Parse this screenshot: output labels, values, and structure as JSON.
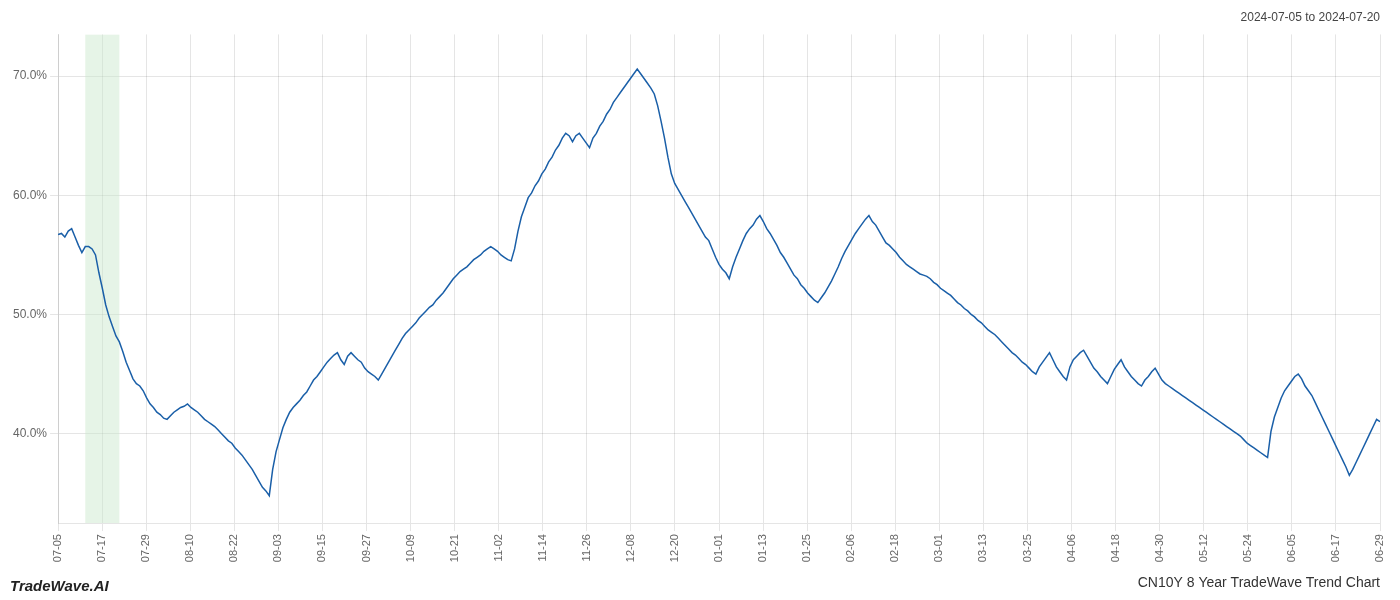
{
  "chart_data": {
    "type": "line",
    "title": "2024-07-05 to 2024-07-20",
    "subtitle": "CN10Y 8 Year TradeWave Trend Chart",
    "annotations": [
      "TradeWave.AI"
    ],
    "color": "#1a5fa8",
    "grid": true,
    "highlight": {
      "start": 8,
      "end": 18,
      "color": "#c8e6c9"
    },
    "xlim": [
      0,
      388
    ],
    "xticks": [
      {
        "value": 0,
        "label": "07-05"
      },
      {
        "value": 12.933333,
        "label": "07-17"
      },
      {
        "value": 25.866667,
        "label": "07-29"
      },
      {
        "value": 38.8,
        "label": "08-10"
      },
      {
        "value": 51.733333,
        "label": "08-22"
      },
      {
        "value": 64.666667,
        "label": "09-03"
      },
      {
        "value": 77.6,
        "label": "09-15"
      },
      {
        "value": 90.533333,
        "label": "09-27"
      },
      {
        "value": 103.466667,
        "label": "10-09"
      },
      {
        "value": 116.4,
        "label": "10-21"
      },
      {
        "value": 129.333333,
        "label": "11-02"
      },
      {
        "value": 142.266667,
        "label": "11-14"
      },
      {
        "value": 155.2,
        "label": "11-26"
      },
      {
        "value": 168.133333,
        "label": "12-08"
      },
      {
        "value": 181.066667,
        "label": "12-20"
      },
      {
        "value": 194,
        "label": "01-01"
      },
      {
        "value": 206.933333,
        "label": "01-13"
      },
      {
        "value": 219.866667,
        "label": "01-25"
      },
      {
        "value": 232.8,
        "label": "02-06"
      },
      {
        "value": 245.733333,
        "label": "02-18"
      },
      {
        "value": 258.666667,
        "label": "03-01"
      },
      {
        "value": 271.6,
        "label": "03-13"
      },
      {
        "value": 284.533333,
        "label": "03-25"
      },
      {
        "value": 297.466667,
        "label": "04-06"
      },
      {
        "value": 310.4,
        "label": "04-18"
      },
      {
        "value": 323.333333,
        "label": "04-30"
      },
      {
        "value": 336.266667,
        "label": "05-12"
      },
      {
        "value": 349.2,
        "label": "05-24"
      },
      {
        "value": 362.133333,
        "label": "06-05"
      },
      {
        "value": 375.066667,
        "label": "06-17"
      },
      {
        "value": 388,
        "label": "06-29"
      }
    ],
    "ylim": [
      0.325,
      0.735
    ],
    "yticks": [
      {
        "value": 0.4,
        "label": "40.0%"
      },
      {
        "value": 0.5,
        "label": "50.0%"
      },
      {
        "value": 0.6,
        "label": "60.0%"
      },
      {
        "value": 0.7,
        "label": "70.0%"
      }
    ],
    "values": [
      0.567,
      0.568,
      0.565,
      0.57,
      0.572,
      0.565,
      0.558,
      0.552,
      0.557,
      0.557,
      0.555,
      0.55,
      0.535,
      0.522,
      0.508,
      0.498,
      0.49,
      0.482,
      0.477,
      0.469,
      0.46,
      0.453,
      0.446,
      0.442,
      0.44,
      0.436,
      0.43,
      0.425,
      0.422,
      0.418,
      0.416,
      0.413,
      0.412,
      0.415,
      0.418,
      0.42,
      0.422,
      0.423,
      0.425,
      0.422,
      0.42,
      0.418,
      0.415,
      0.412,
      0.41,
      0.408,
      0.406,
      0.403,
      0.4,
      0.397,
      0.394,
      0.392,
      0.388,
      0.385,
      0.382,
      0.378,
      0.374,
      0.37,
      0.365,
      0.36,
      0.355,
      0.352,
      0.348,
      0.37,
      0.385,
      0.395,
      0.405,
      0.412,
      0.418,
      0.422,
      0.425,
      0.428,
      0.432,
      0.435,
      0.44,
      0.445,
      0.448,
      0.452,
      0.456,
      0.46,
      0.463,
      0.466,
      0.468,
      0.462,
      0.458,
      0.465,
      0.468,
      0.465,
      0.462,
      0.46,
      0.455,
      0.452,
      0.45,
      0.448,
      0.445,
      0.45,
      0.455,
      0.46,
      0.465,
      0.47,
      0.475,
      0.48,
      0.484,
      0.487,
      0.49,
      0.493,
      0.497,
      0.5,
      0.503,
      0.506,
      0.508,
      0.512,
      0.515,
      0.518,
      0.522,
      0.526,
      0.53,
      0.533,
      0.536,
      0.538,
      0.54,
      0.543,
      0.546,
      0.548,
      0.55,
      0.553,
      0.555,
      0.557,
      0.555,
      0.553,
      0.55,
      0.548,
      0.546,
      0.545,
      0.555,
      0.57,
      0.582,
      0.59,
      0.598,
      0.602,
      0.608,
      0.612,
      0.618,
      0.622,
      0.628,
      0.632,
      0.638,
      0.642,
      0.648,
      0.652,
      0.65,
      0.645,
      0.65,
      0.652,
      0.648,
      0.644,
      0.64,
      0.648,
      0.652,
      0.658,
      0.662,
      0.668,
      0.672,
      0.678,
      0.682,
      0.686,
      0.69,
      0.694,
      0.698,
      0.702,
      0.706,
      0.702,
      0.698,
      0.694,
      0.69,
      0.685,
      0.675,
      0.662,
      0.648,
      0.632,
      0.618,
      0.61,
      0.605,
      0.6,
      0.595,
      0.59,
      0.585,
      0.58,
      0.575,
      0.57,
      0.565,
      0.562,
      0.555,
      0.548,
      0.542,
      0.538,
      0.535,
      0.53,
      0.54,
      0.548,
      0.555,
      0.562,
      0.568,
      0.572,
      0.575,
      0.58,
      0.583,
      0.578,
      0.572,
      0.568,
      0.563,
      0.558,
      0.552,
      0.548,
      0.543,
      0.538,
      0.533,
      0.53,
      0.525,
      0.522,
      0.518,
      0.515,
      0.512,
      0.51,
      0.514,
      0.518,
      0.523,
      0.528,
      0.534,
      0.54,
      0.547,
      0.553,
      0.558,
      0.563,
      0.568,
      0.572,
      0.576,
      0.58,
      0.583,
      0.578,
      0.575,
      0.57,
      0.565,
      0.56,
      0.558,
      0.555,
      0.552,
      0.548,
      0.545,
      0.542,
      0.54,
      0.538,
      0.536,
      0.534,
      0.533,
      0.532,
      0.53,
      0.527,
      0.525,
      0.522,
      0.52,
      0.518,
      0.516,
      0.513,
      0.51,
      0.508,
      0.505,
      0.503,
      0.5,
      0.498,
      0.495,
      0.493,
      0.49,
      0.487,
      0.485,
      0.483,
      0.48,
      0.477,
      0.474,
      0.471,
      0.468,
      0.466,
      0.463,
      0.46,
      0.458,
      0.455,
      0.452,
      0.45,
      0.456,
      0.46,
      0.464,
      0.468,
      0.462,
      0.456,
      0.452,
      0.448,
      0.445,
      0.456,
      0.462,
      0.465,
      0.468,
      0.47,
      0.465,
      0.46,
      0.455,
      0.452,
      0.448,
      0.445,
      0.442,
      0.448,
      0.454,
      0.458,
      0.462,
      0.456,
      0.452,
      0.448,
      0.445,
      0.442,
      0.44,
      0.445,
      0.448,
      0.452,
      0.455,
      0.45,
      0.445,
      0.442,
      0.44,
      0.438,
      0.436,
      0.434,
      0.432,
      0.43,
      0.428,
      0.426,
      0.424,
      0.422,
      0.42,
      0.418,
      0.416,
      0.414,
      0.412,
      0.41,
      0.408,
      0.406,
      0.404,
      0.402,
      0.4,
      0.398,
      0.395,
      0.392,
      0.39,
      0.388,
      0.386,
      0.384,
      0.382,
      0.38,
      0.402,
      0.414,
      0.422,
      0.43,
      0.436,
      0.44,
      0.444,
      0.448,
      0.45,
      0.446,
      0.44,
      0.436,
      0.432,
      0.426,
      0.42,
      0.414,
      0.408,
      0.402,
      0.396,
      0.39,
      0.384,
      0.378,
      0.372,
      0.365,
      0.37,
      0.376,
      0.382,
      0.388,
      0.394,
      0.4,
      0.406,
      0.412,
      0.41
    ]
  }
}
